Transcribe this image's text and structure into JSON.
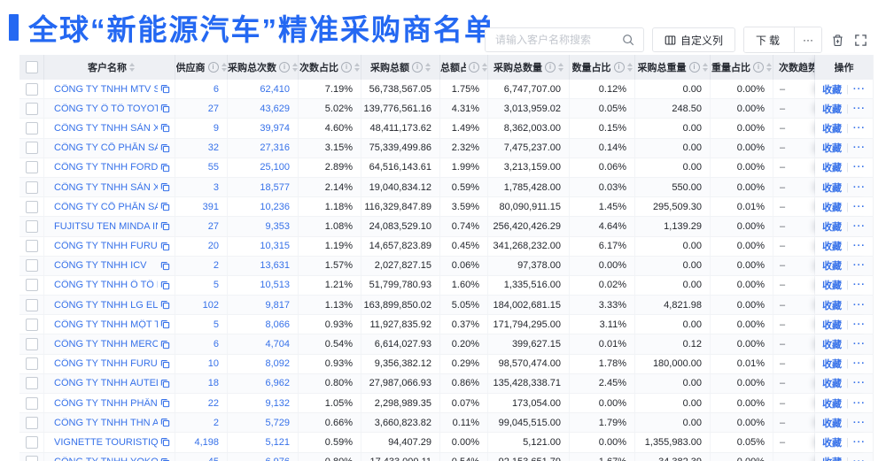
{
  "page": {
    "title": "全球“新能源汽车”精准采购商名单"
  },
  "colors": {
    "accent_blue": "#2468f2",
    "link_blue": "#3671e9",
    "header_bg": "#eef0f4"
  },
  "toolbar": {
    "search_placeholder": "请输入客户名称搜索",
    "customize_columns": "自定义列",
    "download": "下载",
    "more": "···",
    "icons": {
      "search": "search-icon",
      "customize_columns": "columns-grid-icon",
      "trash": "trash-icon",
      "fullscreen": "expand-corners-icon"
    }
  },
  "table": {
    "columns": [
      {
        "label": "客户名称",
        "info": false,
        "sort": true
      },
      {
        "label": "供应商",
        "info": true,
        "sort": true
      },
      {
        "label": "采购总次数",
        "info": true,
        "sort": true
      },
      {
        "label": "次数占比",
        "info": true,
        "sort": true
      },
      {
        "label": "采购总额",
        "info": true,
        "sort": true
      },
      {
        "label": "总额占比",
        "info": true,
        "sort": true
      },
      {
        "label": "采购总数量",
        "info": true,
        "sort": true
      },
      {
        "label": "数量占比",
        "info": true,
        "sort": true
      },
      {
        "label": "采购总重量",
        "info": true,
        "sort": true
      },
      {
        "label": "重量占比",
        "info": true,
        "sort": true
      },
      {
        "label": "次数趋势",
        "info": false,
        "sort": false
      },
      {
        "label": "操作",
        "info": false,
        "sort": false
      }
    ],
    "trend_placeholder": "–",
    "favorite_label": "收藏",
    "row_more_label": "···",
    "rows": [
      {
        "name": "CÔNG TY TNHH MTV SẢN XUẤ...",
        "suppliers": "6",
        "purchases": "62,410",
        "purchase_pct": "7.19%",
        "amount": "56,738,567.05",
        "amount_pct": "1.75%",
        "quantity": "6,747,707.00",
        "quantity_pct": "0.12%",
        "weight": "0.00",
        "weight_pct": "0.00%"
      },
      {
        "name": "CÔNG TY Ô TÔ TOYOTA VIỆT ...",
        "suppliers": "27",
        "purchases": "43,629",
        "purchase_pct": "5.02%",
        "amount": "139,776,561.16",
        "amount_pct": "4.31%",
        "quantity": "3,013,959.02",
        "quantity_pct": "0.05%",
        "weight": "248.50",
        "weight_pct": "0.00%"
      },
      {
        "name": "CÔNG TY TNHH SẢN XUẤT VÀ ...",
        "suppliers": "9",
        "purchases": "39,974",
        "purchase_pct": "4.60%",
        "amount": "48,411,173.62",
        "amount_pct": "1.49%",
        "quantity": "8,362,003.00",
        "quantity_pct": "0.15%",
        "weight": "0.00",
        "weight_pct": "0.00%"
      },
      {
        "name": "CÔNG TY CỔ PHẦN SẢN XUẤT...",
        "suppliers": "32",
        "purchases": "27,316",
        "purchase_pct": "3.15%",
        "amount": "75,339,499.86",
        "amount_pct": "2.32%",
        "quantity": "7,475,237.00",
        "quantity_pct": "0.14%",
        "weight": "0.00",
        "weight_pct": "0.00%"
      },
      {
        "name": "CÔNG TY TNHH FORD VIỆT NAM",
        "suppliers": "55",
        "purchases": "25,100",
        "purchase_pct": "2.89%",
        "amount": "64,516,143.61",
        "amount_pct": "1.99%",
        "quantity": "3,213,159.00",
        "quantity_pct": "0.06%",
        "weight": "0.00",
        "weight_pct": "0.00%"
      },
      {
        "name": "CÔNG TY TNHH SẢN XUẤT VÀ ...",
        "suppliers": "3",
        "purchases": "18,577",
        "purchase_pct": "2.14%",
        "amount": "19,040,834.12",
        "amount_pct": "0.59%",
        "quantity": "1,785,428.00",
        "quantity_pct": "0.03%",
        "weight": "550.00",
        "weight_pct": "0.00%"
      },
      {
        "name": "CÔNG TY CỔ PHẦN SẢN XUẤT...",
        "suppliers": "391",
        "purchases": "10,236",
        "purchase_pct": "1.18%",
        "amount": "116,329,847.89",
        "amount_pct": "3.59%",
        "quantity": "80,090,911.15",
        "quantity_pct": "1.45%",
        "weight": "295,509.30",
        "weight_pct": "0.01%"
      },
      {
        "name": "FUJITSU TEN MINDA INDIA PVT...",
        "suppliers": "27",
        "purchases": "9,353",
        "purchase_pct": "1.08%",
        "amount": "24,083,529.10",
        "amount_pct": "0.74%",
        "quantity": "256,420,426.29",
        "quantity_pct": "4.64%",
        "weight": "1,139.29",
        "weight_pct": "0.00%"
      },
      {
        "name": "CÔNG TY TNHH FURUKAWA A...",
        "suppliers": "20",
        "purchases": "10,315",
        "purchase_pct": "1.19%",
        "amount": "14,657,823.89",
        "amount_pct": "0.45%",
        "quantity": "341,268,232.00",
        "quantity_pct": "6.17%",
        "weight": "0.00",
        "weight_pct": "0.00%"
      },
      {
        "name": "CÔNG TY TNHH ICV",
        "suppliers": "2",
        "purchases": "13,631",
        "purchase_pct": "1.57%",
        "amount": "2,027,827.15",
        "amount_pct": "0.06%",
        "quantity": "97,378.00",
        "quantity_pct": "0.00%",
        "weight": "0.00",
        "weight_pct": "0.00%"
      },
      {
        "name": "CÔNG TY TNHH Ô TÔ MITSUBI...",
        "suppliers": "5",
        "purchases": "10,513",
        "purchase_pct": "1.21%",
        "amount": "51,799,780.93",
        "amount_pct": "1.60%",
        "quantity": "1,335,516.00",
        "quantity_pct": "0.02%",
        "weight": "0.00",
        "weight_pct": "0.00%"
      },
      {
        "name": "CÔNG TY TNHH LG ELECTRON...",
        "suppliers": "102",
        "purchases": "9,817",
        "purchase_pct": "1.13%",
        "amount": "163,899,850.02",
        "amount_pct": "5.05%",
        "quantity": "184,002,681.15",
        "quantity_pct": "3.33%",
        "weight": "4,821.98",
        "weight_pct": "0.00%"
      },
      {
        "name": "CÔNG TY TNHH MỘT THÀNH V...",
        "suppliers": "5",
        "purchases": "8,066",
        "purchase_pct": "0.93%",
        "amount": "11,927,835.92",
        "amount_pct": "0.37%",
        "quantity": "171,794,295.00",
        "quantity_pct": "3.11%",
        "weight": "0.00",
        "weight_pct": "0.00%"
      },
      {
        "name": "CÔNG TY TNHH MERCEDES-B...",
        "suppliers": "6",
        "purchases": "4,704",
        "purchase_pct": "0.54%",
        "amount": "6,614,027.93",
        "amount_pct": "0.20%",
        "quantity": "399,627.15",
        "quantity_pct": "0.01%",
        "weight": "0.12",
        "weight_pct": "0.00%"
      },
      {
        "name": "CÔNG TY TNHH FURUKAWA A...",
        "suppliers": "10",
        "purchases": "8,092",
        "purchase_pct": "0.93%",
        "amount": "9,356,382.12",
        "amount_pct": "0.29%",
        "quantity": "98,570,474.00",
        "quantity_pct": "1.78%",
        "weight": "180,000.00",
        "weight_pct": "0.01%"
      },
      {
        "name": "CÔNG TY TNHH AUTEL VIỆT N...",
        "suppliers": "18",
        "purchases": "6,962",
        "purchase_pct": "0.80%",
        "amount": "27,987,066.93",
        "amount_pct": "0.86%",
        "quantity": "135,428,338.71",
        "quantity_pct": "2.45%",
        "weight": "0.00",
        "weight_pct": "0.00%"
      },
      {
        "name": "CÔNG TY TNHH PHÂN PHỐI T...",
        "suppliers": "22",
        "purchases": "9,132",
        "purchase_pct": "1.05%",
        "amount": "2,298,989.35",
        "amount_pct": "0.07%",
        "quantity": "173,054.00",
        "quantity_pct": "0.00%",
        "weight": "0.00",
        "weight_pct": "0.00%"
      },
      {
        "name": "CÔNG TY TNHH THN AUTOPAR...",
        "suppliers": "2",
        "purchases": "5,729",
        "purchase_pct": "0.66%",
        "amount": "3,660,823.82",
        "amount_pct": "0.11%",
        "quantity": "99,045,515.00",
        "quantity_pct": "1.79%",
        "weight": "0.00",
        "weight_pct": "0.00%"
      },
      {
        "name": "VIGNETTE TOURISTIQUE G UNI...",
        "suppliers": "4,198",
        "purchases": "5,121",
        "purchase_pct": "0.59%",
        "amount": "94,407.29",
        "amount_pct": "0.00%",
        "quantity": "5,121.00",
        "quantity_pct": "0.00%",
        "weight": "1,355,983.00",
        "weight_pct": "0.05%"
      },
      {
        "name": "CÔNG TY TNHH YOKOWO VIỆT...",
        "suppliers": "45",
        "purchases": "6,976",
        "purchase_pct": "0.80%",
        "amount": "17,433,000.11",
        "amount_pct": "0.54%",
        "quantity": "92,153,651.79",
        "quantity_pct": "1.67%",
        "weight": "34,382.39",
        "weight_pct": "0.00%"
      }
    ]
  }
}
